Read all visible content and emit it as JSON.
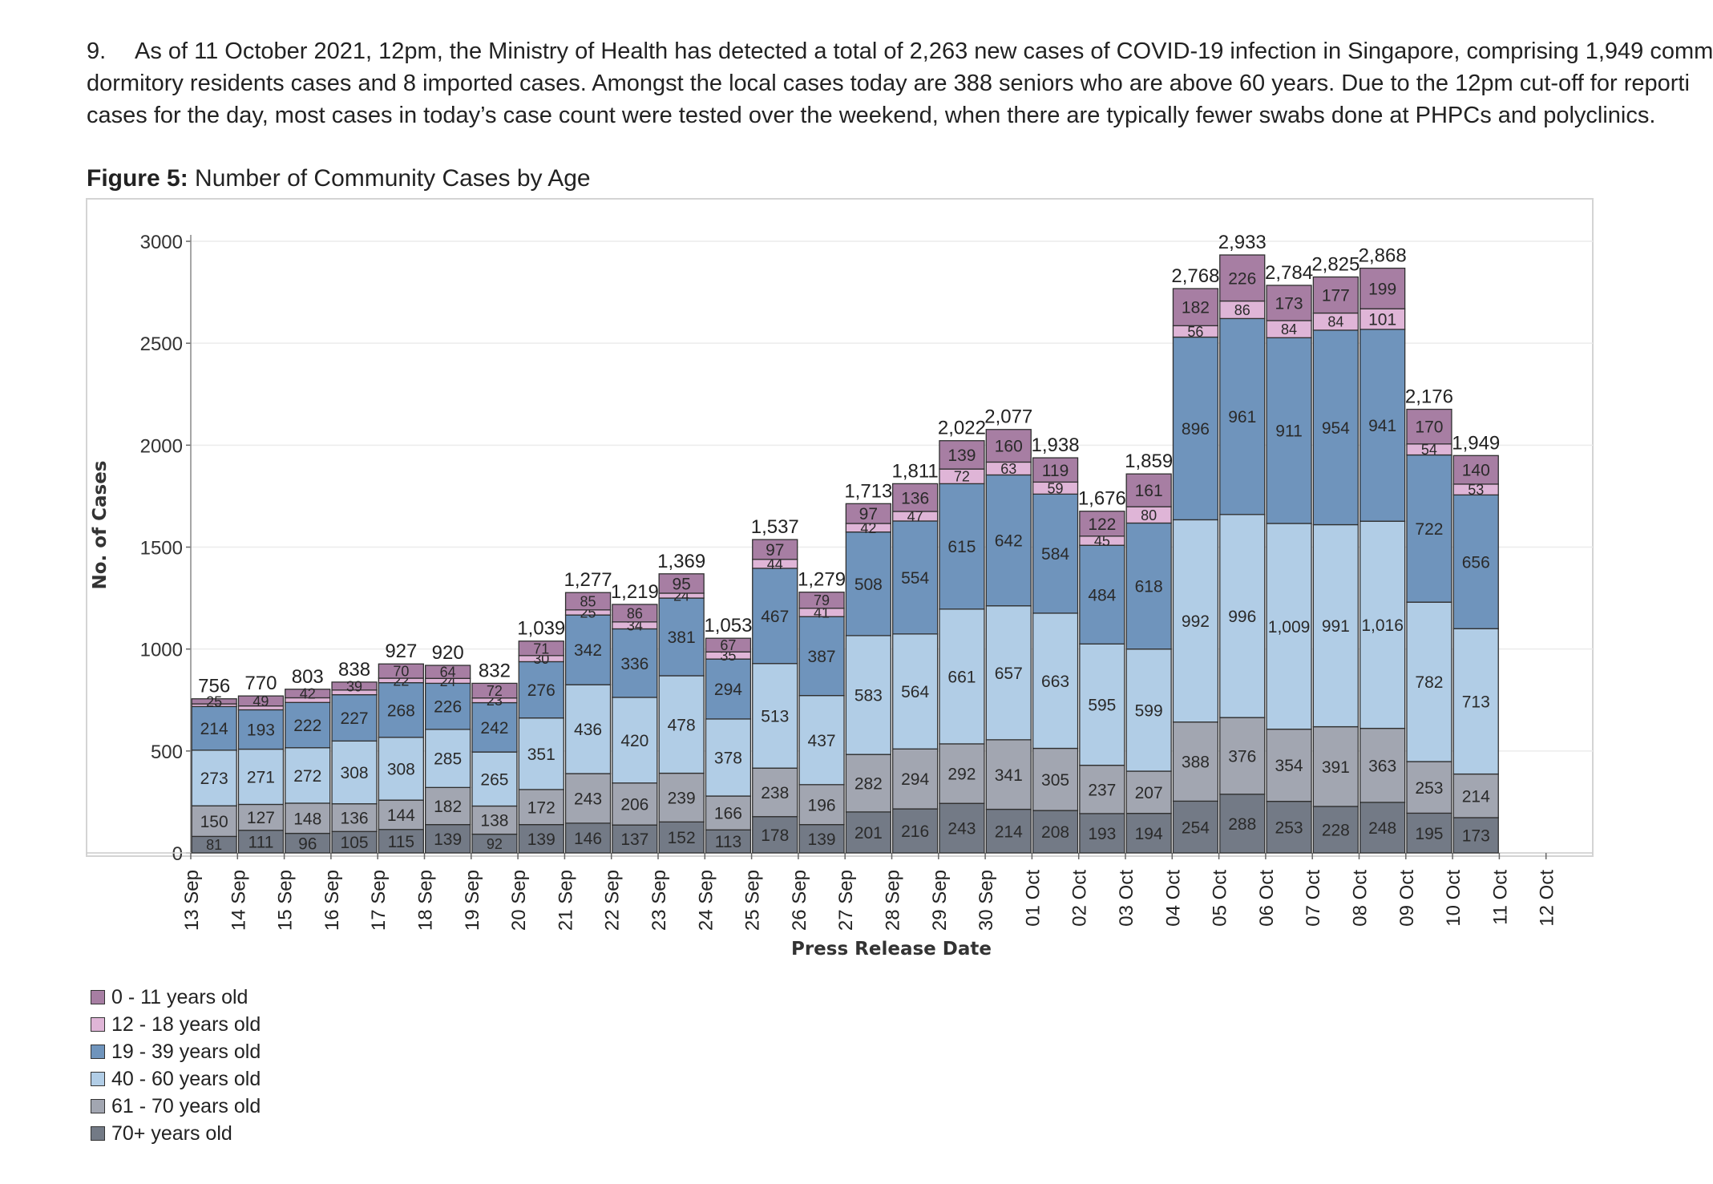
{
  "paragraph": {
    "number": "9.",
    "line1": "As of 11 October 2021, 12pm, the Ministry of Health has detected a total of 2,263 new cases of COVID-19 infection in Singapore, comprising 1,949 comm",
    "line2": "dormitory residents cases and 8 imported cases. Amongst the local cases today are 388 seniors who are above 60 years. Due to the 12pm cut-off for reporti",
    "line3": "cases for the day, most cases in today’s case count were tested over the weekend, when there are typically fewer swabs done at PHPCs and polyclinics."
  },
  "figure": {
    "label": "Figure 5:",
    "caption": "Number of Community Cases by Age"
  },
  "colors": {
    "70+": "#737a86",
    "61-70": "#a2a6b1",
    "40-60": "#b1cde6",
    "19-39": "#6f94bc",
    "12-18": "#dfb5d7",
    "0-11": "#a77ea3"
  },
  "chart_data": {
    "type": "bar",
    "stacked": true,
    "title": "",
    "xlabel": "Press Release Date",
    "ylabel": "No. of Cases",
    "ylim": [
      0,
      3000
    ],
    "yticks": [
      "3000",
      "2500",
      "2000",
      "1500",
      "1000",
      "500",
      "0"
    ],
    "ytick_values": [
      3000,
      2500,
      2000,
      1500,
      1000,
      500,
      0
    ],
    "x_tick_labels": [
      "13 Sep",
      "14 Sep",
      "15 Sep",
      "16 Sep",
      "17 Sep",
      "18 Sep",
      "19 Sep",
      "20 Sep",
      "21 Sep",
      "22 Sep",
      "23 Sep",
      "24 Sep",
      "25 Sep",
      "26 Sep",
      "27 Sep",
      "28 Sep",
      "29 Sep",
      "30 Sep",
      "01 Oct",
      "02 Oct",
      "03 Oct",
      "04 Oct",
      "05 Oct",
      "06 Oct",
      "07 Oct",
      "08 Oct",
      "09 Oct",
      "10 Oct",
      "11 Oct",
      "12 Oct"
    ],
    "categories": [
      "14 Sep",
      "15 Sep",
      "16 Sep",
      "17 Sep",
      "18 Sep",
      "19 Sep",
      "20 Sep",
      "21 Sep",
      "22 Sep",
      "23 Sep",
      "24 Sep",
      "25 Sep",
      "26 Sep",
      "27 Sep",
      "28 Sep",
      "29 Sep",
      "30 Sep",
      "01 Oct",
      "02 Oct",
      "03 Oct",
      "04 Oct",
      "05 Oct",
      "06 Oct",
      "07 Oct",
      "08 Oct",
      "09 Oct",
      "10 Oct",
      "11 Oct"
    ],
    "series": [
      {
        "name": "70+ years old",
        "key": "70+",
        "values": [
          81,
          111,
          96,
          105,
          115,
          139,
          92,
          139,
          146,
          137,
          152,
          113,
          178,
          139,
          201,
          216,
          243,
          214,
          208,
          193,
          194,
          254,
          288,
          253,
          228,
          248,
          195,
          173
        ]
      },
      {
        "name": "61 - 70 years old",
        "key": "61-70",
        "values": [
          150,
          127,
          148,
          136,
          144,
          182,
          138,
          172,
          243,
          206,
          239,
          166,
          238,
          196,
          282,
          294,
          292,
          341,
          305,
          237,
          207,
          388,
          376,
          354,
          391,
          363,
          253,
          214
        ]
      },
      {
        "name": "40 - 60 years old",
        "key": "40-60",
        "values": [
          273,
          271,
          272,
          308,
          308,
          285,
          265,
          351,
          436,
          420,
          478,
          378,
          513,
          437,
          583,
          564,
          661,
          657,
          663,
          595,
          599,
          992,
          996,
          1009,
          991,
          1016,
          782,
          713
        ]
      },
      {
        "name": "19 - 39 years old",
        "key": "19-39",
        "values": [
          214,
          193,
          222,
          227,
          268,
          226,
          242,
          276,
          342,
          336,
          381,
          294,
          467,
          387,
          508,
          554,
          615,
          642,
          584,
          484,
          618,
          896,
          961,
          911,
          954,
          941,
          722,
          656
        ]
      },
      {
        "name": "12 - 18 years old",
        "key": "12-18",
        "values": [
          13,
          19,
          23,
          23,
          22,
          24,
          23,
          30,
          25,
          34,
          24,
          35,
          44,
          41,
          42,
          47,
          72,
          63,
          59,
          45,
          80,
          56,
          86,
          84,
          84,
          101,
          54,
          53
        ]
      },
      {
        "name": "0 - 11 years old",
        "key": "0-11",
        "values": [
          25,
          49,
          42,
          39,
          70,
          64,
          72,
          71,
          85,
          86,
          95,
          67,
          97,
          79,
          97,
          136,
          139,
          160,
          119,
          122,
          161,
          182,
          226,
          173,
          177,
          199,
          170,
          140
        ]
      }
    ],
    "segment_labels": [
      [
        "81",
        "150",
        "273",
        "214",
        "",
        "25"
      ],
      [
        "111",
        "127",
        "271",
        "193",
        "",
        "49"
      ],
      [
        "96",
        "148",
        "272",
        "222",
        "",
        "42"
      ],
      [
        "105",
        "136",
        "308",
        "227",
        "",
        "39"
      ],
      [
        "115",
        "144",
        "308",
        "268",
        "22",
        "70"
      ],
      [
        "139",
        "182",
        "285",
        "226",
        "24",
        "64"
      ],
      [
        "92",
        "138",
        "265",
        "242",
        "23",
        "72"
      ],
      [
        "139",
        "172",
        "351",
        "276",
        "30",
        "71"
      ],
      [
        "146",
        "243",
        "436",
        "342",
        "25",
        "85"
      ],
      [
        "137",
        "206",
        "420",
        "336",
        "34",
        "86"
      ],
      [
        "152",
        "239",
        "478",
        "381",
        "24",
        "95"
      ],
      [
        "113",
        "166",
        "378",
        "294",
        "35",
        "67"
      ],
      [
        "178",
        "238",
        "513",
        "467",
        "44",
        "97"
      ],
      [
        "139",
        "196",
        "437",
        "387",
        "41",
        "79"
      ],
      [
        "201",
        "282",
        "583",
        "508",
        "42",
        "97"
      ],
      [
        "216",
        "294",
        "564",
        "554",
        "47",
        "136"
      ],
      [
        "243",
        "292",
        "661",
        "615",
        "72",
        "139"
      ],
      [
        "214",
        "341",
        "657",
        "642",
        "63",
        "160"
      ],
      [
        "208",
        "305",
        "663",
        "584",
        "59",
        "119"
      ],
      [
        "193",
        "237",
        "595",
        "484",
        "45",
        "122"
      ],
      [
        "194",
        "207",
        "599",
        "618",
        "80",
        "161"
      ],
      [
        "254",
        "388",
        "992",
        "896",
        "56",
        "182"
      ],
      [
        "288",
        "376",
        "996",
        "961",
        "86",
        "226"
      ],
      [
        "253",
        "354",
        "1,009",
        "911",
        "84",
        "173"
      ],
      [
        "228",
        "391",
        "991",
        "954",
        "84",
        "177"
      ],
      [
        "248",
        "363",
        "1,016",
        "941",
        "101",
        "199"
      ],
      [
        "195",
        "253",
        "782",
        "722",
        "54",
        "170"
      ],
      [
        "173",
        "214",
        "713",
        "656",
        "53",
        "140"
      ]
    ],
    "totals": [
      756,
      770,
      803,
      838,
      927,
      920,
      832,
      1039,
      1277,
      1219,
      1369,
      1053,
      1537,
      1279,
      1713,
      1811,
      2022,
      2077,
      1938,
      1676,
      1859,
      2768,
      2933,
      2784,
      2825,
      2868,
      2176,
      1949
    ],
    "total_labels": [
      "756",
      "770",
      "803",
      "838",
      "927",
      "920",
      "832",
      "1,039",
      "1,277",
      "1,219",
      "1,369",
      "1,053",
      "1,537",
      "1,279",
      "1,713",
      "1,811",
      "2,022",
      "2,077",
      "1,938",
      "1,676",
      "1,859",
      "2,768",
      "2,933",
      "2,784",
      "2,825",
      "2,868",
      "2,176",
      "1,949"
    ],
    "legend_position": "bottom-left"
  },
  "legend": [
    {
      "key": "0-11",
      "label": "0 - 11 years old"
    },
    {
      "key": "12-18",
      "label": "12 - 18 years old"
    },
    {
      "key": "19-39",
      "label": "19 - 39 years old"
    },
    {
      "key": "40-60",
      "label": "40 - 60 years old"
    },
    {
      "key": "61-70",
      "label": "61 - 70 years old"
    },
    {
      "key": "70+",
      "label": "70+ years old"
    }
  ]
}
